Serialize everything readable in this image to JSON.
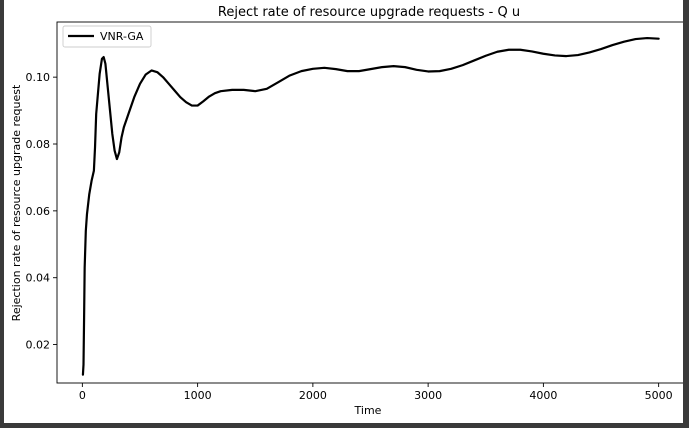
{
  "chart_data": {
    "type": "line",
    "title": "Reject rate of resource upgrade requests - Q u",
    "xlabel": "Time",
    "ylabel": "Rejection rate of resource upgrade request",
    "xlim": [
      -220,
      5220
    ],
    "ylim": [
      0.0085,
      0.1165
    ],
    "x_ticks": [
      0,
      1000,
      2000,
      3000,
      4000,
      5000
    ],
    "x_tick_labels": [
      "0",
      "1000",
      "2000",
      "3000",
      "4000",
      "5000"
    ],
    "y_ticks": [
      0.02,
      0.04,
      0.06,
      0.08,
      0.1
    ],
    "y_tick_labels": [
      "0.02",
      "0.04",
      "0.06",
      "0.08",
      "0.10"
    ],
    "grid": false,
    "legend_position": "top-left",
    "series": [
      {
        "name": "VNR-GA",
        "color": "#000000",
        "x": [
          5,
          10,
          15,
          20,
          30,
          40,
          60,
          80,
          100,
          110,
          120,
          130,
          150,
          170,
          185,
          200,
          220,
          240,
          260,
          280,
          300,
          320,
          340,
          360,
          400,
          450,
          500,
          550,
          600,
          650,
          700,
          750,
          800,
          850,
          900,
          950,
          1000,
          1050,
          1100,
          1150,
          1200,
          1300,
          1400,
          1500,
          1600,
          1700,
          1800,
          1900,
          2000,
          2100,
          2200,
          2300,
          2400,
          2500,
          2600,
          2700,
          2800,
          2900,
          3000,
          3100,
          3200,
          3300,
          3400,
          3500,
          3600,
          3700,
          3800,
          3900,
          4000,
          4100,
          4200,
          4300,
          4400,
          4500,
          4600,
          4700,
          4800,
          4900,
          5000
        ],
        "values": [
          0.011,
          0.014,
          0.028,
          0.043,
          0.054,
          0.059,
          0.065,
          0.069,
          0.072,
          0.079,
          0.089,
          0.093,
          0.101,
          0.1055,
          0.106,
          0.104,
          0.097,
          0.09,
          0.083,
          0.078,
          0.0755,
          0.0775,
          0.082,
          0.085,
          0.089,
          0.094,
          0.098,
          0.1008,
          0.102,
          0.1015,
          0.1,
          0.098,
          0.096,
          0.094,
          0.0925,
          0.0915,
          0.0915,
          0.0928,
          0.0942,
          0.0952,
          0.0958,
          0.0962,
          0.0962,
          0.0958,
          0.0965,
          0.0985,
          0.1005,
          0.1018,
          0.1025,
          0.1028,
          0.1024,
          0.1018,
          0.1018,
          0.1024,
          0.103,
          0.1033,
          0.103,
          0.1022,
          0.1017,
          0.1018,
          0.1025,
          0.1036,
          0.105,
          0.1064,
          0.1076,
          0.1082,
          0.1082,
          0.1077,
          0.107,
          0.1065,
          0.1063,
          0.1066,
          0.1074,
          0.1084,
          0.1096,
          0.1106,
          0.1114,
          0.1117,
          0.1115
        ]
      }
    ]
  }
}
